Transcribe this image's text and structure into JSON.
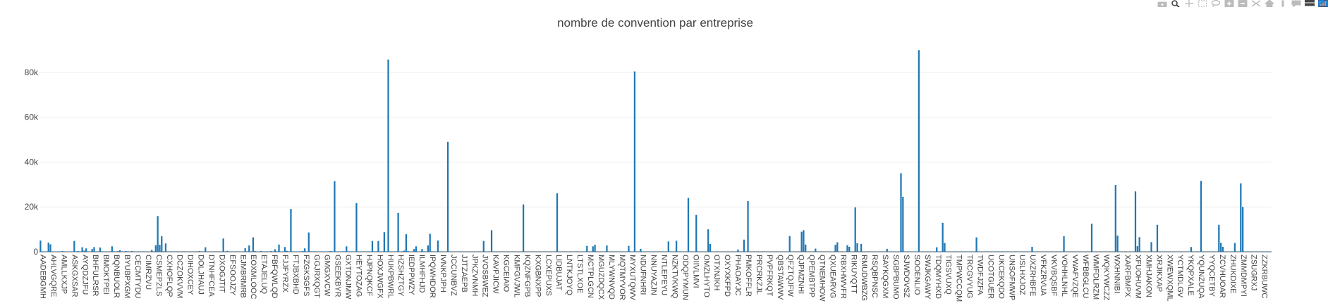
{
  "modebar": {
    "buttons": [
      {
        "name": "camera-icon",
        "color": "#bbbbbb"
      },
      {
        "name": "zoom-icon",
        "color": "#444444"
      },
      {
        "name": "pan-icon",
        "color": "#bbbbbb"
      },
      {
        "name": "box-select-icon",
        "color": "#bbbbbb"
      },
      {
        "name": "lasso-icon",
        "color": "#bbbbbb"
      },
      {
        "name": "zoom-in-icon",
        "color": "#bbbbbb"
      },
      {
        "name": "zoom-out-icon",
        "color": "#bbbbbb"
      },
      {
        "name": "autoscale-icon",
        "color": "#bbbbbb"
      },
      {
        "name": "reset-axes-icon",
        "color": "#bbbbbb"
      },
      {
        "name": "spike-lines-icon",
        "color": "#bbbbbb"
      },
      {
        "name": "hover-closest-icon",
        "color": "#bbbbbb"
      },
      {
        "name": "hover-compare-icon",
        "color": "#444444"
      },
      {
        "name": "plotly-logo-icon",
        "color": "#3f4f75"
      }
    ]
  },
  "chart_data": {
    "type": "bar",
    "title": "nombre de convention par entreprise",
    "xlabel": "",
    "ylabel": "",
    "ylim": [
      0,
      95000
    ],
    "yticks": [
      0,
      20000,
      40000,
      60000,
      80000
    ],
    "ytick_labels": [
      "0",
      "20k",
      "40k",
      "60k",
      "80k"
    ],
    "grid": true,
    "bar_color": "#1f77b4",
    "x_tick_labels": [
      "AADEBGMH",
      "AHLVGQRE",
      "AMLLKXJP",
      "ASKGXSAR",
      "AYQDZJFU",
      "BHFULRSR",
      "BMOKTPEI",
      "BQNBUOLR",
      "BYUBPXGM",
      "CECMTYDU",
      "CIMRZVU",
      "CSMEPZLS",
      "CXHOFLQP",
      "DCZOKVVM",
      "DIHOXCEY",
      "DOLJHAUJ",
      "DTNHFCEA",
      "DXOGJTIT",
      "EFSOOJZY",
      "EJMBRMRB",
      "EOXMLOOC",
      "ETAJELUQ",
      "FBFQWLQD",
      "FJJFYRZX",
      "FTJBXBHD",
      "FZGKSGFS",
      "GGJRXQGT",
      "GMGXVCW",
      "GSEEKBYR",
      "GXTDNJMW",
      "HEYTOZAG",
      "HJPNQKCF",
      "HOXJWGFX",
      "HUKPBWRL",
      "HZSHZTGY",
      "IEDPPWZY",
      "ILMHFHJD",
      "IPQWHDOR",
      "IVNKPJPH",
      "JCCUNBVZ",
      "JJTZAEPB",
      "JPKZVNMH",
      "JVOSBWEZ",
      "KAVPJICW",
      "KGCEIAIO",
      "KMFGVJWL",
      "KQZNFGPB",
      "KXGBNXPP",
      "LCXEPUXS",
      "LIDBUJAT",
      "LNTKJOYQ",
      "LTSTLXOE",
      "MCTPLGCN",
      "MGUZDQCX",
      "MLYWNVQD",
      "MQTMYVOR",
      "MYXUTQWV",
      "NDUFNHRI",
      "NNUYAZJN",
      "NTLEPEYU",
      "NZKTVKWQ",
      "ODQPYMUN",
      "OIIVLMVI",
      "OMZLHYTO",
      "OTXNJKH",
      "OXYXKFPD",
      "PHAOAYJC",
      "PMKOFFLR",
      "PRCRKZJL",
      "PVPFRKQT",
      "QBSTAWWV",
      "QFZTQJFW",
      "QJPMZNHI",
      "QPEMBTPP",
      "QTNEMHOW",
      "QXUEARVG",
      "RBXHWVFR",
      "RIKUYQTT",
      "RMUDWBZG",
      "RSQBPNSC",
      "SAYKQGXM",
      "SGBPBUMO",
      "SJWDOVSZ",
      "SOOENLIO",
      "SWJKGAWY",
      "TDQMYHXD",
      "TIGSVUXQ",
      "TMPWCCQM",
      "TRCGVYUG",
      "TWDFJZFA",
      "UCOTGUER",
      "UKCEKQDO",
      "UNSOFMWP",
      "USLHXJOZ",
      "UXZRHBFE",
      "VFKZRVUA",
      "VKVBQSBF",
      "VOHHLNHL",
      "VWAFVZQE",
      "WFBBGLCU",
      "WMFDLRZM",
      "WQKYWCZZ",
      "WXHNNIBI",
      "XARFBMPX",
      "XFUOHUVM",
      "XMHJAKON",
      "XRJIKXAP",
      "XWEWXQML",
      "YCTMDLGV",
      "YKQPXALE",
      "YQUNZUQA",
      "YYQCETBY",
      "ZCVHUOAR",
      "ZHUKDIXE",
      "ZMMDMPYI",
      "ZSUGRXJ",
      "ZZKRBUWC"
    ],
    "values": [
      5000,
      200,
      100,
      100,
      4100,
      3300,
      100,
      150,
      100,
      100,
      100,
      300,
      100,
      100,
      100,
      100,
      100,
      4800,
      200,
      300,
      100,
      2000,
      500,
      1500,
      100,
      100,
      1200,
      2100,
      100,
      200,
      1900,
      200,
      100,
      100,
      100,
      100,
      2400,
      200,
      100,
      300,
      700,
      200,
      200,
      300,
      200,
      100,
      300,
      100,
      100,
      100,
      100,
      100,
      100,
      100,
      100,
      100,
      800,
      200,
      2900,
      15900,
      3100,
      6900,
      200,
      3700,
      100,
      100,
      200,
      100,
      100,
      200,
      100,
      100,
      200,
      200,
      100,
      100,
      100,
      100,
      200,
      100,
      300,
      100,
      100,
      2000,
      100,
      100,
      100,
      100,
      200,
      100,
      100,
      100,
      5900,
      100,
      400,
      100,
      100,
      100,
      100,
      200,
      100,
      100,
      100,
      1600,
      200,
      2800,
      100,
      6400,
      300,
      100,
      100,
      300,
      100,
      100,
      200,
      100,
      300,
      100,
      1100,
      200,
      3200,
      100,
      100,
      2100,
      400,
      100,
      19100,
      200,
      100,
      100,
      100,
      200,
      300,
      1500,
      100,
      8600,
      200,
      100,
      200,
      100,
      100,
      100,
      100,
      100,
      100,
      200,
      300,
      100,
      31500,
      100,
      100,
      100,
      200,
      200,
      2400,
      200,
      100,
      200,
      100,
      21700,
      100,
      100,
      100,
      100,
      100,
      200,
      100,
      4800,
      200,
      100,
      4800,
      100,
      100,
      8700,
      200,
      85700,
      100,
      100,
      100,
      100,
      17300,
      100,
      200,
      500,
      7800,
      300,
      100,
      100,
      1200,
      2400,
      100,
      100,
      1200,
      200,
      100,
      2800,
      8000,
      200,
      100,
      100,
      5000,
      100,
      100,
      100,
      100,
      49000,
      100,
      100,
      100,
      100,
      100,
      100,
      100,
      100,
      100,
      100,
      100,
      100,
      100,
      100,
      100,
      100,
      100,
      4800,
      100,
      100,
      100,
      9600,
      200,
      100,
      100,
      100,
      100,
      100,
      100,
      100,
      100,
      100,
      100,
      100,
      100,
      100,
      100,
      21100,
      100,
      100,
      100,
      100,
      100,
      100,
      100,
      100,
      100,
      100,
      100,
      100,
      100,
      100,
      100,
      100,
      26100,
      100,
      100,
      100,
      100,
      100,
      100,
      100,
      100,
      100,
      100,
      100,
      100,
      100,
      100,
      2600,
      100,
      100,
      2400,
      3100,
      100,
      100,
      100,
      100,
      100,
      2800,
      100,
      100,
      100,
      100,
      100,
      100,
      100,
      100,
      100,
      100,
      2600,
      100,
      100,
      80400,
      100,
      100,
      1300,
      100,
      100,
      100,
      100,
      100,
      100,
      100,
      100,
      100,
      100,
      100,
      100,
      100,
      4600,
      100,
      100,
      100,
      4900,
      100,
      100,
      100,
      100,
      100,
      24000,
      100,
      100,
      100,
      16400,
      100,
      100,
      100,
      100,
      100,
      10000,
      3500,
      100,
      100,
      100,
      100,
      100,
      100,
      100,
      100,
      100,
      100,
      100,
      100,
      100,
      1000,
      100,
      100,
      5400,
      100,
      22600,
      100,
      100,
      100,
      100,
      100,
      100,
      100,
      100,
      100,
      100,
      100,
      100,
      100,
      100,
      100,
      100,
      100,
      100,
      100,
      100,
      7000,
      100,
      100,
      100,
      100,
      100,
      8900,
      9600,
      3200,
      100,
      100,
      100,
      100,
      1400,
      100,
      100,
      100,
      100,
      100,
      100,
      100,
      100,
      100,
      3100,
      4200,
      100,
      100,
      100,
      100,
      2900,
      2200,
      100,
      100,
      19800,
      3800,
      100,
      3500,
      100,
      100,
      100,
      100,
      100,
      100,
      100,
      100,
      100,
      100,
      100,
      100,
      1300,
      100,
      100,
      100,
      100,
      100,
      100,
      35000,
      24500,
      100,
      100,
      100,
      100,
      100,
      100,
      100,
      89900,
      100,
      100,
      100,
      100,
      100,
      100,
      100,
      100,
      2000,
      100,
      100,
      12900,
      3900,
      100,
      100,
      100,
      100,
      100,
      100,
      100,
      100,
      100,
      100,
      100,
      100,
      100,
      100,
      100,
      6400,
      100,
      100,
      100,
      100,
      100,
      100,
      100,
      100,
      100,
      100,
      100,
      100,
      100,
      100,
      100,
      100,
      100,
      100,
      100,
      100,
      100,
      100,
      100,
      100,
      100,
      100,
      100,
      2200,
      100,
      100,
      100,
      100,
      100,
      100,
      100,
      100,
      100,
      100,
      100,
      100,
      100,
      100,
      100,
      6900,
      100,
      100,
      100,
      100,
      100,
      100,
      100,
      100,
      100,
      100,
      100,
      100,
      100,
      12500,
      100,
      100,
      100,
      100,
      100,
      100,
      100,
      100,
      100,
      100,
      100,
      29800,
      7200,
      100,
      100,
      100,
      100,
      100,
      100,
      100,
      100,
      26900,
      2500,
      6500,
      100,
      100,
      100,
      100,
      100,
      4300,
      100,
      100,
      12000,
      100,
      100,
      100,
      100,
      100,
      100,
      100,
      100,
      100,
      100,
      100,
      100,
      100,
      100,
      100,
      100,
      2100,
      100,
      100,
      100,
      100,
      31600,
      100,
      100,
      100,
      100,
      100,
      100,
      100,
      100,
      12000,
      4000,
      2200,
      100,
      100,
      100,
      100,
      100,
      3900,
      100,
      100,
      30500,
      20000,
      100,
      100,
      100,
      100,
      100,
      100,
      100,
      100,
      100,
      100,
      100,
      100,
      100,
      100
    ]
  }
}
